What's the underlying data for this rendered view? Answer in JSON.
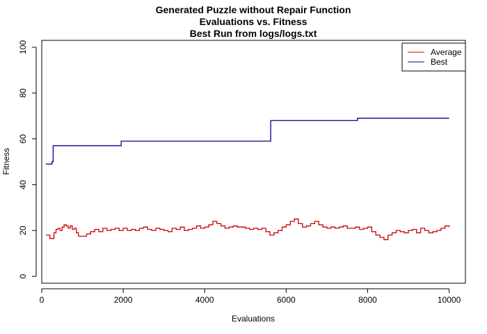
{
  "chart_data": {
    "type": "line",
    "title_lines": [
      "Generated Puzzle without Repair Function",
      "Evaluations vs. Fitness",
      "Best Run from logs/logs.txt"
    ],
    "xlabel": "Evaluations",
    "ylabel": "Fitness",
    "xlim": [
      0,
      10400
    ],
    "ylim": [
      -3,
      103
    ],
    "x_ticks": [
      0,
      2000,
      4000,
      6000,
      8000,
      10000
    ],
    "y_ticks": [
      0,
      20,
      40,
      60,
      80,
      100
    ],
    "grid": false,
    "legend_position": "top-right",
    "series": [
      {
        "name": "Average",
        "color": "#cc0000",
        "step": true,
        "x": [
          100,
          200,
          300,
          350,
          400,
          450,
          500,
          550,
          600,
          650,
          700,
          750,
          800,
          850,
          900,
          1000,
          1100,
          1200,
          1300,
          1400,
          1500,
          1600,
          1700,
          1800,
          1900,
          2000,
          2100,
          2200,
          2300,
          2400,
          2500,
          2600,
          2700,
          2800,
          2900,
          3000,
          3100,
          3200,
          3300,
          3400,
          3500,
          3600,
          3700,
          3800,
          3900,
          4000,
          4100,
          4200,
          4300,
          4400,
          4500,
          4600,
          4700,
          4800,
          4900,
          5000,
          5100,
          5200,
          5300,
          5400,
          5500,
          5600,
          5700,
          5800,
          5900,
          6000,
          6100,
          6200,
          6300,
          6400,
          6500,
          6600,
          6700,
          6800,
          6900,
          7000,
          7100,
          7200,
          7300,
          7400,
          7500,
          7600,
          7700,
          7800,
          7900,
          8000,
          8100,
          8200,
          8300,
          8400,
          8500,
          8600,
          8700,
          8800,
          8900,
          9000,
          9100,
          9200,
          9300,
          9400,
          9500,
          9600,
          9700,
          9800,
          9900,
          10000
        ],
        "values": [
          18,
          16.5,
          19,
          20.5,
          21,
          20,
          21.5,
          22.5,
          22,
          21,
          22,
          20.5,
          21,
          19,
          17.5,
          17.5,
          18.5,
          19.5,
          20.5,
          19.5,
          21,
          20,
          20.5,
          21,
          20,
          21,
          20,
          20.5,
          20,
          21,
          21.5,
          20.5,
          20,
          21,
          20.5,
          20,
          19.5,
          21,
          20.5,
          21.5,
          20,
          20.5,
          21,
          22,
          21,
          21.5,
          22.5,
          24,
          23,
          22,
          21,
          21.5,
          22,
          21.5,
          21.5,
          21,
          20.5,
          21,
          20.5,
          21,
          19.5,
          18,
          19,
          20,
          21.5,
          22.5,
          24,
          25,
          23,
          21.5,
          22,
          23,
          24,
          22.5,
          21.5,
          21,
          21.5,
          21,
          21.5,
          22,
          21,
          21,
          21.5,
          20.5,
          21,
          21.5,
          19.5,
          18,
          17,
          16,
          18,
          19,
          20,
          19.5,
          19,
          20,
          20.5,
          19,
          21,
          20,
          19,
          19.5,
          20,
          21,
          22,
          21.5
        ]
      },
      {
        "name": "Best",
        "color": "#00008b",
        "step": true,
        "x": [
          100,
          250,
          280,
          1950,
          5620,
          7750,
          10000
        ],
        "values": [
          49,
          50,
          57,
          59,
          68,
          69,
          69
        ]
      }
    ]
  }
}
